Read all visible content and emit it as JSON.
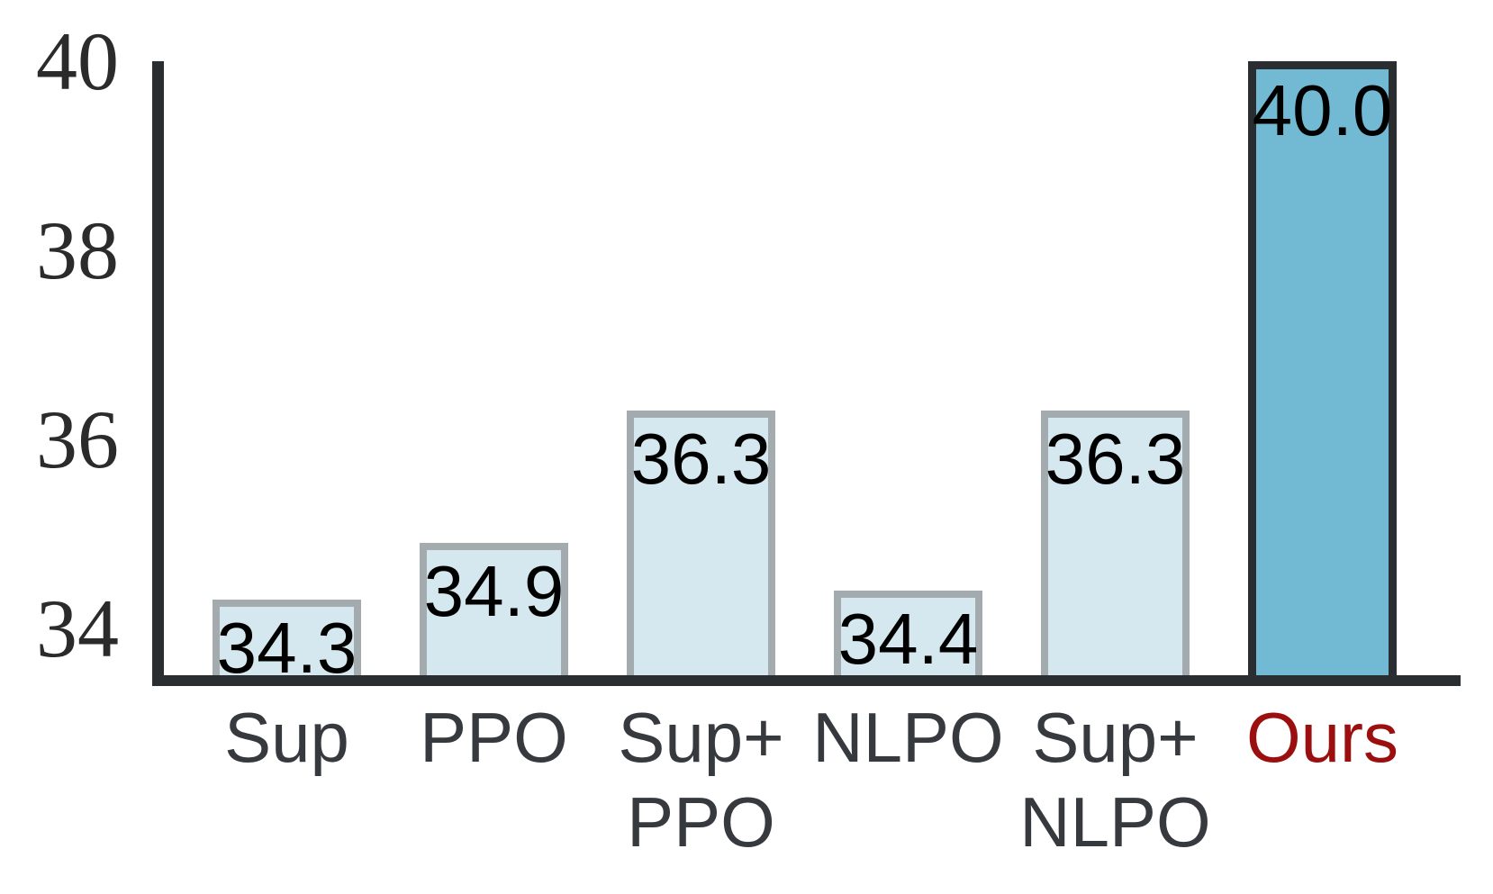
{
  "figure": {
    "background": "#ffffff",
    "axis_color": "#2a2e31",
    "bar_fill": "#d5e8ef",
    "bar_border": "#a4abaf",
    "highlight_fill": "#72b9d3",
    "highlight_border": "#2a2e31",
    "value_text_color": "#000000",
    "tick_text_color": "#2b2b2b",
    "category_text_color": "#36393d",
    "highlight_category_color": "#9b0f0f"
  },
  "chart_data": {
    "type": "bar",
    "title": "",
    "xlabel": "",
    "ylabel": "",
    "grid": false,
    "legend": null,
    "categories": [
      "Sup",
      "PPO",
      "Sup+\nPPO",
      "NLPO",
      "Sup+\nNLPO",
      "Ours"
    ],
    "values": [
      34.3,
      34.9,
      36.3,
      34.4,
      36.3,
      40.0
    ],
    "value_labels": [
      "34.3",
      "34.9",
      "36.3",
      "34.4",
      "36.3",
      "40.0"
    ],
    "highlight_index": 5,
    "highlight_name": "Ours",
    "y_ticks": [
      34,
      36,
      38,
      40
    ],
    "ylim": [
      33.5,
      40
    ]
  }
}
